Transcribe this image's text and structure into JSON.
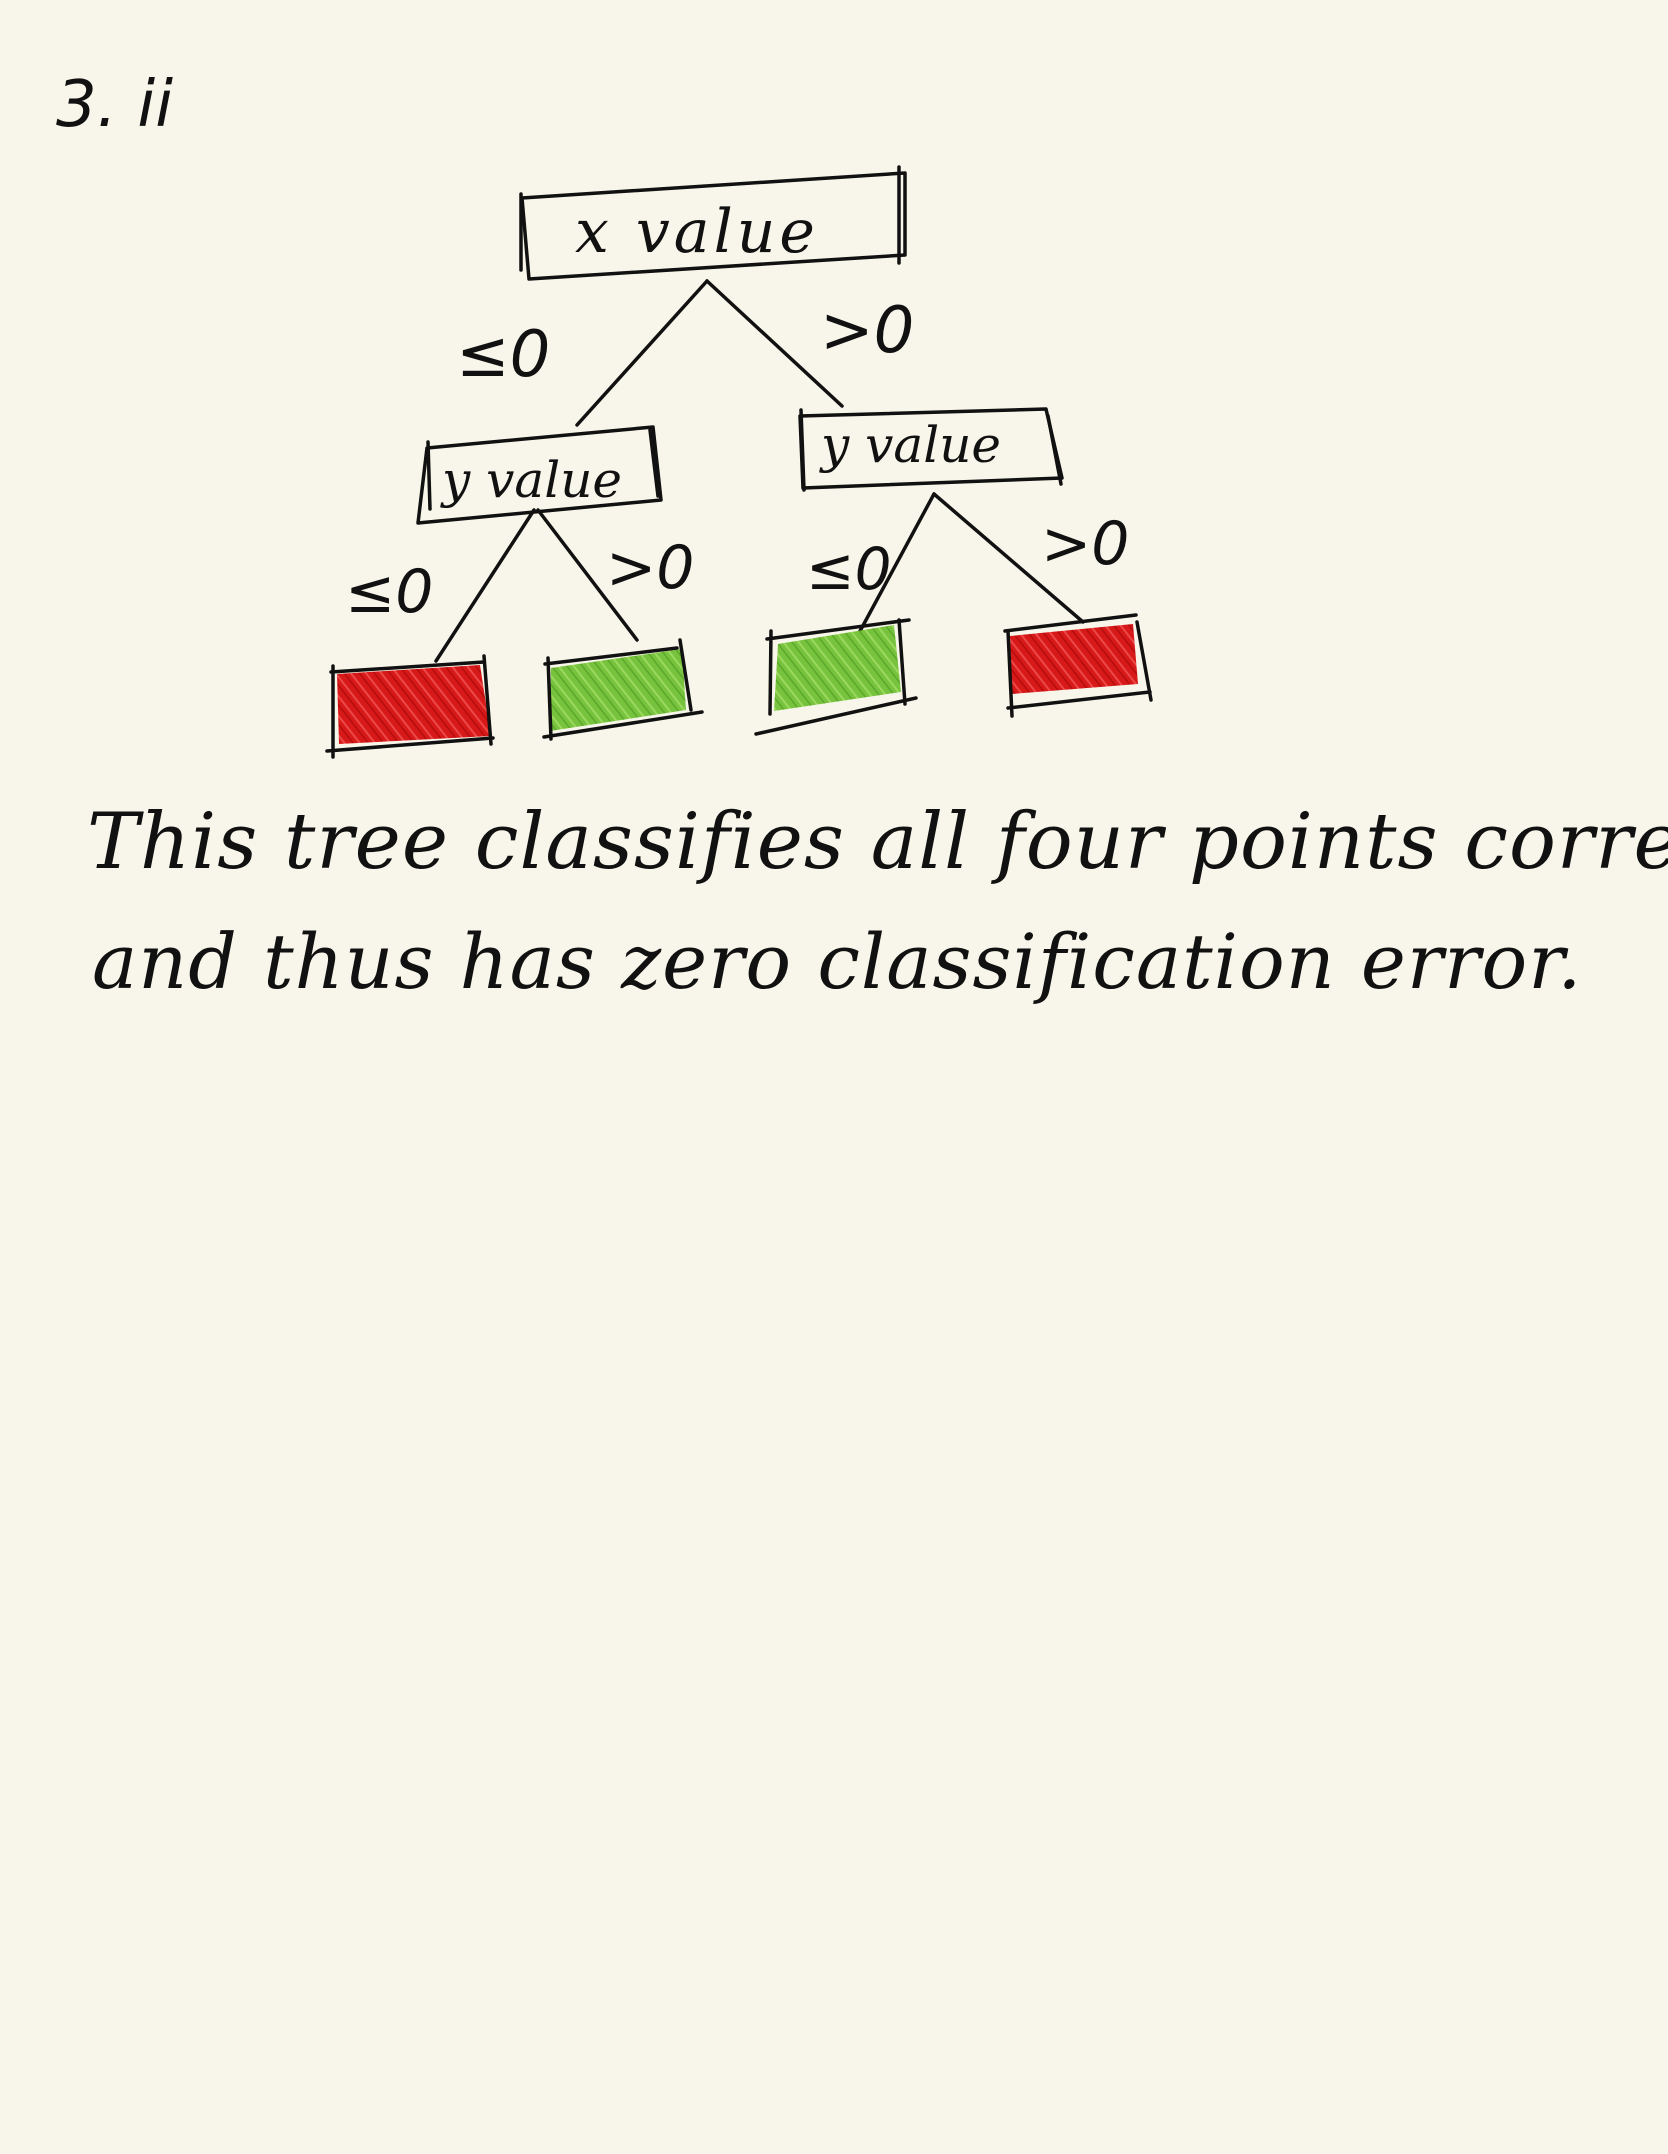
{
  "problem": {
    "label": "3. ii"
  },
  "tree": {
    "root": {
      "label": "x value",
      "left_edge": "≤0",
      "right_edge": ">0"
    },
    "left_node": {
      "label": "y value",
      "left_edge": "≤0",
      "right_edge": ">0"
    },
    "right_node": {
      "label": "y value",
      "left_edge": "≤0",
      "right_edge": ">0"
    },
    "leaves": [
      {
        "class": "red",
        "color": "#d71919"
      },
      {
        "class": "green",
        "color": "#76bf3b"
      },
      {
        "class": "green",
        "color": "#76bf3b"
      },
      {
        "class": "red",
        "color": "#d71919"
      }
    ]
  },
  "explanation": {
    "line1": "This tree classifies all four points correctly",
    "line2": "and thus has zero classification error."
  },
  "colors": {
    "paper": "#f8f6ea",
    "ink": "#111111",
    "red": "#d71919",
    "green": "#76bf3b"
  }
}
